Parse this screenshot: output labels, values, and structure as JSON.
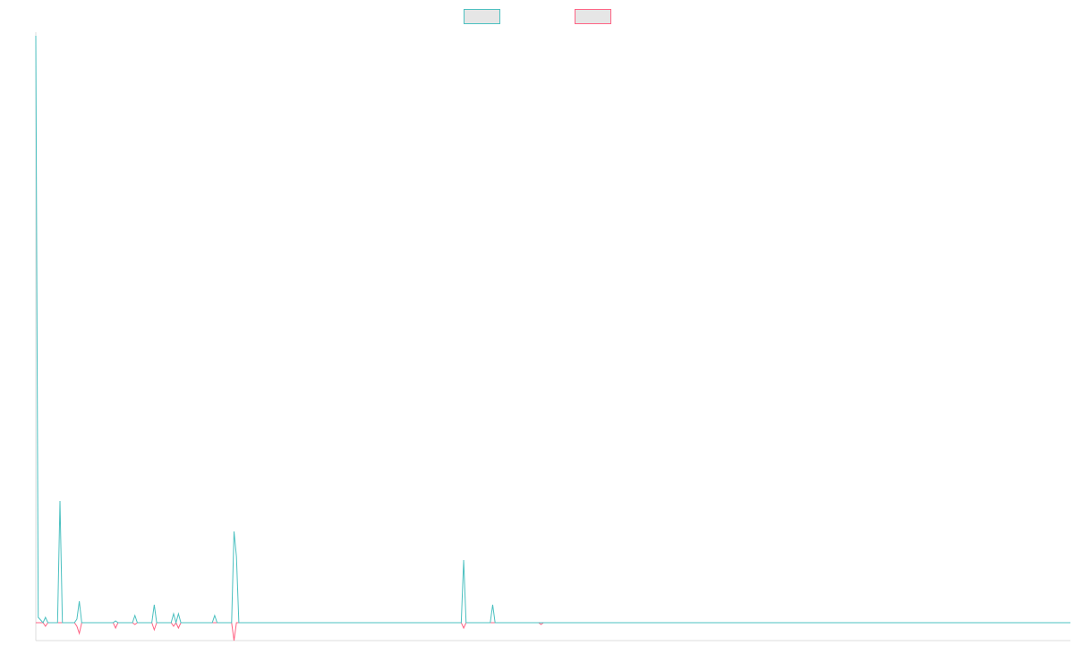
{
  "chart_data": {
    "type": "line",
    "title": "",
    "xlabel": "",
    "ylabel": "",
    "ylim": [
      -10,
      330
    ],
    "grid": false,
    "legend": {
      "position": "top-center",
      "entries": [
        {
          "name": "",
          "color": "#4bc0c0",
          "fill": "#e6e6e6"
        },
        {
          "name": "",
          "color": "#ff6384",
          "fill": "#e6e6e6"
        }
      ]
    },
    "x_count": 429,
    "series": [
      {
        "color": "#4bc0c0",
        "points": [
          [
            0,
            328
          ],
          [
            1,
            3
          ],
          [
            3,
            0
          ],
          [
            4,
            3
          ],
          [
            5,
            0
          ],
          [
            9,
            0
          ],
          [
            10,
            68
          ],
          [
            11,
            0
          ],
          [
            16,
            0
          ],
          [
            17,
            2
          ],
          [
            18,
            12
          ],
          [
            19,
            0
          ],
          [
            27,
            0
          ],
          [
            32,
            0
          ],
          [
            33,
            1
          ],
          [
            34,
            0
          ],
          [
            36,
            0
          ],
          [
            37,
            0
          ],
          [
            40,
            0
          ],
          [
            41,
            4
          ],
          [
            42,
            0
          ],
          [
            48,
            0
          ],
          [
            49,
            10
          ],
          [
            50,
            0
          ],
          [
            56,
            0
          ],
          [
            57,
            5
          ],
          [
            58,
            0
          ],
          [
            59,
            5
          ],
          [
            60,
            0
          ],
          [
            73,
            0
          ],
          [
            74,
            4
          ],
          [
            75,
            0
          ],
          [
            81,
            0
          ],
          [
            82,
            51
          ],
          [
            83,
            37
          ],
          [
            84,
            0
          ],
          [
            105,
            0
          ],
          [
            106,
            0
          ],
          [
            115,
            0
          ],
          [
            116,
            0
          ],
          [
            176,
            0
          ],
          [
            177,
            35
          ],
          [
            178,
            0
          ],
          [
            188,
            0
          ],
          [
            189,
            10
          ],
          [
            190,
            0
          ],
          [
            208,
            0
          ],
          [
            209,
            0
          ],
          [
            428,
            0
          ]
        ]
      },
      {
        "color": "#ff6384",
        "points": [
          [
            0,
            0
          ],
          [
            3,
            0
          ],
          [
            4,
            -2
          ],
          [
            5,
            0
          ],
          [
            16,
            0
          ],
          [
            17,
            -2
          ],
          [
            18,
            -6
          ],
          [
            19,
            0
          ],
          [
            32,
            0
          ],
          [
            33,
            -3
          ],
          [
            34,
            0
          ],
          [
            40,
            0
          ],
          [
            41,
            -1
          ],
          [
            42,
            0
          ],
          [
            48,
            0
          ],
          [
            49,
            -4
          ],
          [
            50,
            0
          ],
          [
            56,
            0
          ],
          [
            57,
            -2
          ],
          [
            58,
            0
          ],
          [
            59,
            -3
          ],
          [
            60,
            0
          ],
          [
            81,
            0
          ],
          [
            82,
            -10
          ],
          [
            83,
            0
          ],
          [
            176,
            0
          ],
          [
            177,
            -3
          ],
          [
            178,
            0
          ],
          [
            208,
            0
          ],
          [
            209,
            -1
          ],
          [
            210,
            0
          ],
          [
            428,
            0
          ]
        ]
      }
    ]
  }
}
